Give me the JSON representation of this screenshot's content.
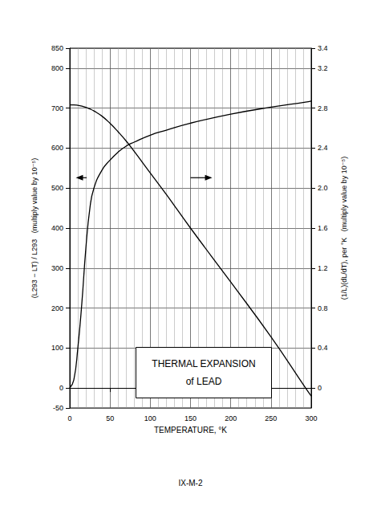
{
  "chart_data": {
    "type": "line",
    "title": "THERMAL EXPANSION\nof LEAD",
    "x_label": "TEMPERATURE, °K",
    "y_label": "(L293 − LT) / L293   (multiply value by 10⁻⁵)",
    "y2_label": "(1/L)(dL/dT), per °K   (multiply value by 10⁻⁵)",
    "annotations": [
      "IX-M-2"
    ],
    "x": [
      0,
      5,
      10,
      15,
      20,
      25,
      30,
      40,
      50,
      60,
      70,
      80,
      100,
      120,
      150,
      200,
      250,
      293,
      300
    ],
    "series": [
      {
        "color": "#000000",
        "values": [
          708,
          708,
          707,
          705,
          702,
          698,
          693,
          680,
          662,
          641,
          618,
          592,
          538,
          484,
          400,
          265,
          128,
          0,
          -20
        ]
      },
      {
        "color": "#000000",
        "axis": "y2",
        "values": [
          0,
          0.08,
          0.4,
          0.85,
          1.4,
          1.8,
          2.0,
          2.18,
          2.28,
          2.36,
          2.42,
          2.46,
          2.53,
          2.58,
          2.65,
          2.74,
          2.81,
          2.86,
          2.87
        ]
      }
    ],
    "xlim": [
      0,
      300
    ],
    "xticks": [
      0,
      50,
      100,
      150,
      200,
      250,
      300
    ],
    "ylim": [
      -50,
      850
    ],
    "yticks": [
      -50,
      0,
      100,
      200,
      300,
      400,
      500,
      600,
      700,
      800,
      850
    ],
    "y2lim": [
      -0.2,
      3.4
    ],
    "y2ticks": [
      0,
      0.4,
      0.8,
      1.2,
      1.6,
      {
        "value": 2,
        "label": "2.0"
      },
      2.4,
      2.8,
      3.2,
      3.4
    ],
    "grid": true
  }
}
